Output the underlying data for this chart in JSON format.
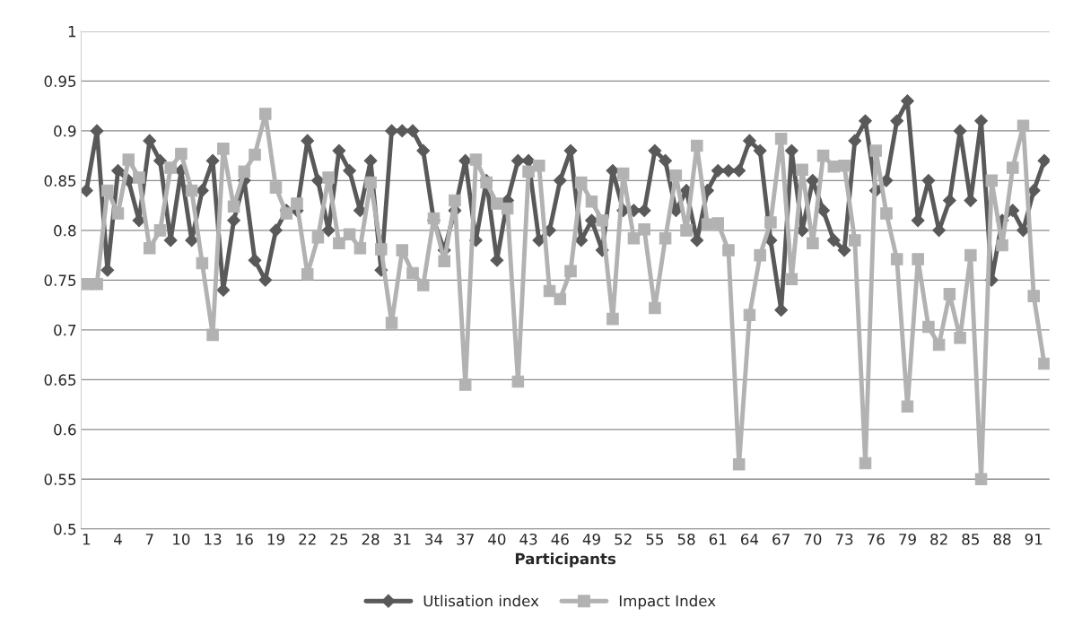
{
  "chart_data": {
    "type": "line",
    "xlabel": "Participants",
    "categories": [
      "1",
      null,
      null,
      "4",
      null,
      null,
      "7",
      null,
      null,
      "10",
      null,
      null,
      "13",
      null,
      null,
      "16",
      null,
      null,
      "19",
      null,
      null,
      "22",
      null,
      null,
      "25",
      null,
      null,
      "28",
      null,
      null,
      "31",
      null,
      null,
      "34",
      null,
      null,
      "37",
      null,
      null,
      "40",
      null,
      null,
      "43",
      null,
      null,
      "46",
      null,
      null,
      "49",
      null,
      null,
      "52",
      null,
      null,
      "55",
      null,
      null,
      "58",
      null,
      null,
      "61",
      null,
      null,
      "64",
      null,
      null,
      "67",
      null,
      null,
      "70",
      null,
      null,
      "73",
      null,
      null,
      "76",
      null,
      null,
      "79",
      null,
      null,
      "82",
      null,
      null,
      "85",
      null,
      null,
      "88",
      null,
      null,
      "91",
      null
    ],
    "series": [
      {
        "name": "Utlisation index",
        "color": "#595959",
        "marker": "diamond",
        "values": [
          0.84,
          0.9,
          0.76,
          0.86,
          0.85,
          0.81,
          0.89,
          0.87,
          0.79,
          0.86,
          0.79,
          0.84,
          0.87,
          0.74,
          0.81,
          0.85,
          0.77,
          0.75,
          0.8,
          0.82,
          0.82,
          0.89,
          0.85,
          0.8,
          0.88,
          0.86,
          0.82,
          0.87,
          0.76,
          0.9,
          0.9,
          0.9,
          0.88,
          0.81,
          0.78,
          0.82,
          0.87,
          0.79,
          0.85,
          0.77,
          0.83,
          0.87,
          0.87,
          0.79,
          0.8,
          0.85,
          0.88,
          0.79,
          0.81,
          0.78,
          0.86,
          0.82,
          0.82,
          0.82,
          0.88,
          0.87,
          0.82,
          0.84,
          0.79,
          0.84,
          0.86,
          0.86,
          0.86,
          0.89,
          0.88,
          0.79,
          0.72,
          0.88,
          0.8,
          0.85,
          0.82,
          0.79,
          0.78,
          0.89,
          0.91,
          0.84,
          0.85,
          0.91,
          0.93,
          0.81,
          0.85,
          0.8,
          0.83,
          0.9,
          0.83,
          0.91,
          0.75,
          0.81,
          0.82,
          0.8,
          0.84,
          0.87
        ]
      },
      {
        "name": "Impact Index",
        "color": "#b2b2b2",
        "marker": "square",
        "values": [
          0.746,
          0.746,
          0.84,
          0.817,
          0.871,
          0.853,
          0.782,
          0.8,
          0.863,
          0.877,
          0.84,
          0.767,
          0.695,
          0.882,
          0.824,
          0.859,
          0.876,
          0.917,
          0.843,
          0.817,
          0.827,
          0.756,
          0.793,
          0.853,
          0.787,
          0.796,
          0.782,
          0.848,
          0.781,
          0.707,
          0.78,
          0.757,
          0.745,
          0.812,
          0.769,
          0.83,
          0.645,
          0.871,
          0.848,
          0.827,
          0.822,
          0.648,
          0.859,
          0.865,
          0.739,
          0.731,
          0.759,
          0.848,
          0.829,
          0.81,
          0.711,
          0.857,
          0.792,
          0.801,
          0.722,
          0.792,
          0.855,
          0.8,
          0.885,
          0.806,
          0.807,
          0.78,
          0.565,
          0.715,
          0.775,
          0.808,
          0.892,
          0.751,
          0.861,
          0.787,
          0.875,
          0.864,
          0.865,
          0.79,
          0.566,
          0.88,
          0.817,
          0.771,
          0.623,
          0.771,
          0.703,
          0.685,
          0.736,
          0.692,
          0.775,
          0.55,
          0.85,
          0.785,
          0.863,
          0.905,
          0.734,
          0.666
        ]
      }
    ],
    "ylim": [
      0.5,
      1
    ],
    "yticks": [
      0.5,
      0.55,
      0.6,
      0.65,
      0.7,
      0.75,
      0.8,
      0.85,
      0.9,
      0.95,
      1
    ],
    "grid": "y",
    "legend": "bottom",
    "line_style": "solid"
  }
}
